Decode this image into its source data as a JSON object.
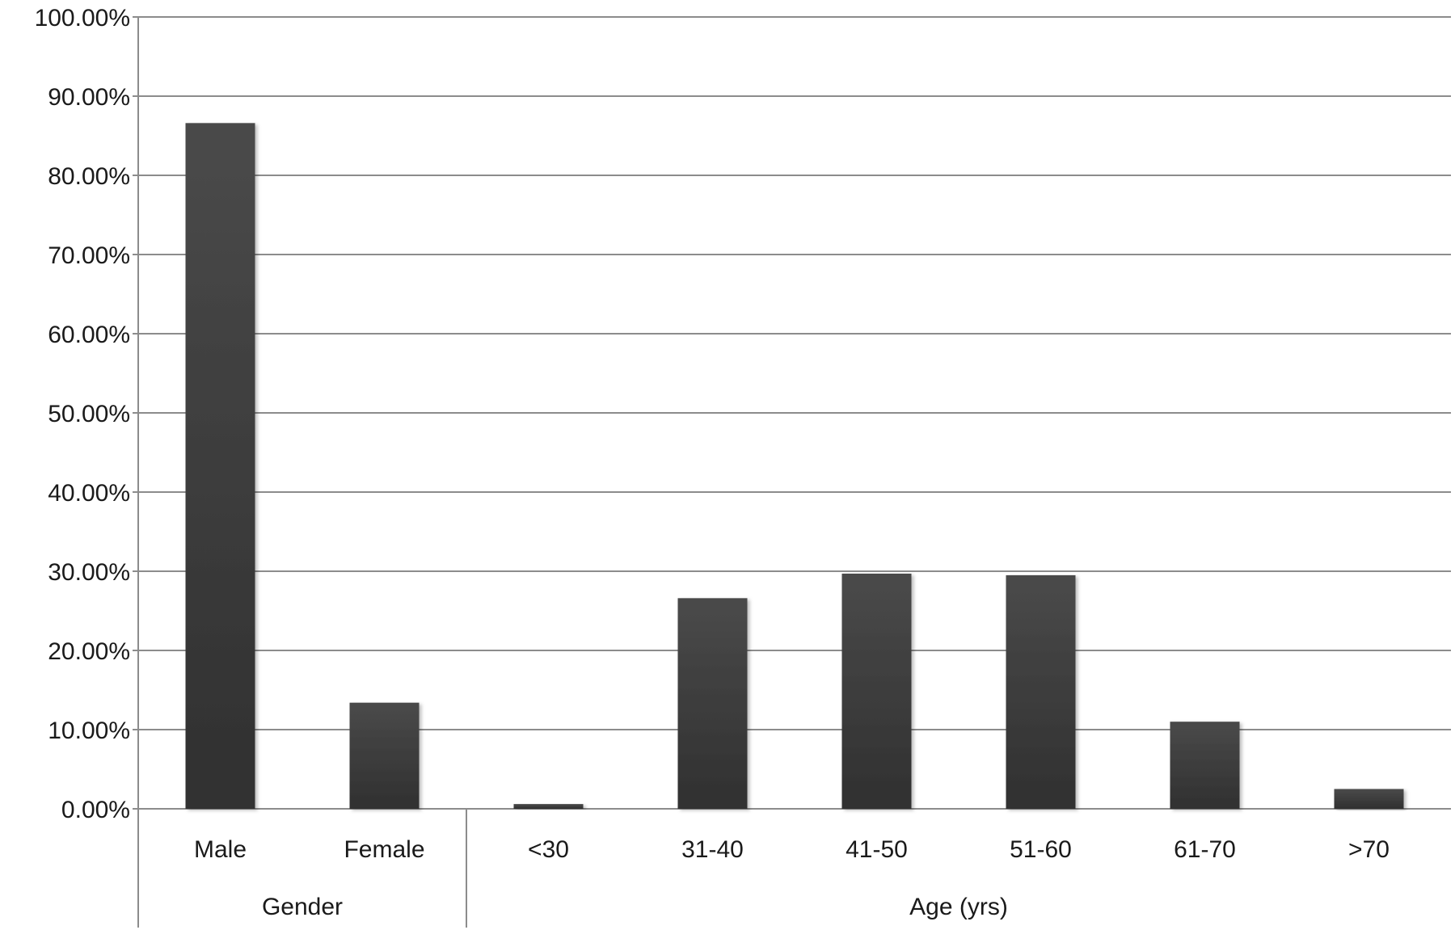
{
  "chart_data": {
    "type": "bar",
    "title": "",
    "xlabel": "",
    "ylabel": "",
    "ylim": [
      0,
      100
    ],
    "y_tick_step": 10,
    "y_tick_format": "percent_2dp",
    "grid": true,
    "legend": "none",
    "bar_color": "#424242",
    "categories": [
      "Male",
      "Female",
      "<30",
      "31-40",
      "41-50",
      "51-60",
      "61-70",
      ">70"
    ],
    "values": [
      86.6,
      13.4,
      0.6,
      26.6,
      29.7,
      29.5,
      11.0,
      2.5
    ],
    "groups": [
      {
        "label": "Gender",
        "categories": [
          "Male",
          "Female"
        ]
      },
      {
        "label": "Age (yrs)",
        "categories": [
          "<30",
          "31-40",
          "41-50",
          "51-60",
          "61-70",
          ">70"
        ]
      }
    ]
  }
}
